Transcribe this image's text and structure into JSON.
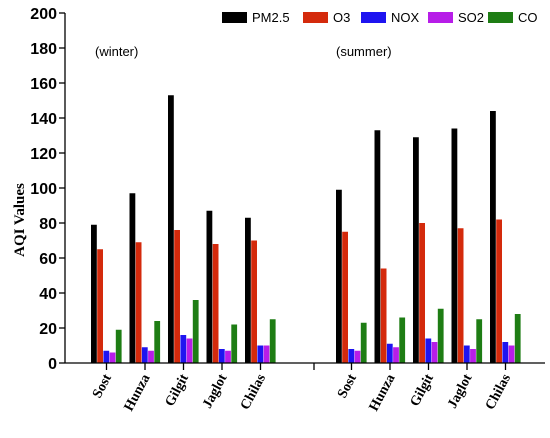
{
  "chart_data": {
    "type": "bar",
    "ylabel": "AQI Values",
    "ylim": [
      0,
      200
    ],
    "yticks": [
      0,
      20,
      40,
      60,
      80,
      100,
      120,
      140,
      160,
      180,
      200
    ],
    "grid": false,
    "legend_position": "top-right",
    "annotations": [
      "(winter)",
      "(summer)"
    ],
    "series": [
      {
        "name": "PM2.5",
        "color": "#000000"
      },
      {
        "name": "O3",
        "color": "#d42a0c"
      },
      {
        "name": "NOX",
        "color": "#1e14f0"
      },
      {
        "name": "SO2",
        "color": "#b71de8"
      },
      {
        "name": "CO",
        "color": "#1e7d14"
      }
    ],
    "groups": [
      {
        "name": "winter",
        "categories": [
          "Sost",
          "Hunza",
          "Gilgit",
          "Jaglot",
          "Chilas"
        ],
        "values": {
          "PM2.5": [
            79,
            97,
            153,
            87,
            83
          ],
          "O3": [
            65,
            69,
            76,
            68,
            70
          ],
          "NOX": [
            7,
            9,
            16,
            8,
            10
          ],
          "SO2": [
            6,
            7,
            14,
            7,
            10
          ],
          "CO": [
            19,
            24,
            36,
            22,
            25
          ]
        }
      },
      {
        "name": "summer",
        "categories": [
          "Sost",
          "Hunza",
          "Gilgit",
          "Jaglot",
          "Chilas"
        ],
        "values": {
          "PM2.5": [
            99,
            133,
            129,
            134,
            144
          ],
          "O3": [
            75,
            54,
            80,
            77,
            82
          ],
          "NOX": [
            8,
            11,
            14,
            10,
            12
          ],
          "SO2": [
            7,
            9,
            12,
            8,
            10
          ],
          "CO": [
            23,
            26,
            31,
            25,
            28
          ]
        }
      }
    ]
  }
}
